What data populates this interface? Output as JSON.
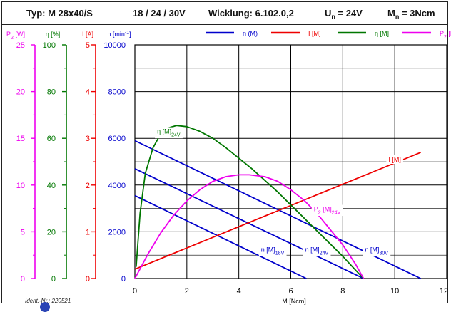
{
  "header": {
    "type": "Typ: M 28x40/S",
    "voltages": "18 / 24 / 30V",
    "winding": "Wicklung: 6.102.0,2",
    "un_main": "U",
    "un_sub": "n",
    "un_val": " = 24V",
    "mn_main": "M",
    "mn_sub": "n",
    "mn_val": " = 3Ncm"
  },
  "footer": {
    "ident": "Ident.-Nr.: 220521"
  },
  "legend": [
    {
      "label": "n (M)",
      "color": "#0000cc"
    },
    {
      "label": "I [M]",
      "color": "#ee0000"
    },
    {
      "label": "η [M]",
      "color": "#007700"
    },
    {
      "label": "P",
      "sub": "2",
      "label_tail": " [M]",
      "color": "#ee00ee"
    }
  ],
  "colors": {
    "speed": "#0000cc",
    "current": "#ee0000",
    "efficiency": "#007700",
    "power": "#ee00ee",
    "grid": "#000000"
  },
  "chart_data": {
    "type": "line",
    "xlabel": "M [Ncm]",
    "xlim": [
      0,
      12
    ],
    "x_ticks": [
      "0",
      "2",
      "4",
      "6",
      "8",
      "10",
      "12"
    ],
    "axes": [
      {
        "id": "p2",
        "label": "P",
        "label_sub": "2",
        "label_tail": " [W]",
        "lim": [
          0,
          25
        ],
        "ticks": [
          "0",
          "5",
          "10",
          "15",
          "20",
          "25"
        ],
        "color": "#ee00ee"
      },
      {
        "id": "eta",
        "label": "η [%]",
        "lim": [
          0,
          100
        ],
        "ticks": [
          "0",
          "20",
          "40",
          "60",
          "80",
          "100"
        ],
        "color": "#007700"
      },
      {
        "id": "i",
        "label": "I [A]",
        "lim": [
          0,
          5
        ],
        "ticks": [
          "0",
          "1",
          "2",
          "3",
          "4",
          "5"
        ],
        "color": "#ee0000"
      },
      {
        "id": "n",
        "label": "n [min",
        "label_sup": "-1",
        "label_tail": "]",
        "lim": [
          0,
          10000
        ],
        "ticks": [
          "0",
          "2000",
          "4000",
          "6000",
          "8000",
          "10000"
        ],
        "color": "#0000cc"
      }
    ],
    "series": [
      {
        "name": "n [M]",
        "sub": "18V",
        "axis": "n",
        "x": [
          0,
          6.6
        ],
        "y": [
          3550,
          0
        ]
      },
      {
        "name": "n [M]",
        "sub": "24V",
        "axis": "n",
        "x": [
          0,
          8.8
        ],
        "y": [
          4700,
          0
        ]
      },
      {
        "name": "n [M]",
        "sub": "30V",
        "axis": "n",
        "x": [
          0,
          11.0
        ],
        "y": [
          5900,
          0
        ]
      },
      {
        "name": "I [M]",
        "axis": "i",
        "x": [
          0,
          11.0
        ],
        "y": [
          0.2,
          2.7
        ]
      },
      {
        "name": "η [M]",
        "sub": "24V",
        "axis": "eta",
        "x": [
          0.05,
          0.2,
          0.4,
          0.7,
          1.0,
          1.3,
          1.6,
          2.0,
          2.5,
          3.0,
          3.5,
          4.0,
          4.5,
          5.0,
          5.5,
          6.0,
          6.5,
          7.0,
          7.5,
          8.0,
          8.5,
          8.8
        ],
        "y": [
          5,
          28,
          45,
          56,
          62,
          64.5,
          65.5,
          65,
          63,
          60,
          56,
          51.5,
          47,
          42,
          37,
          31.5,
          26,
          20.5,
          15,
          9.5,
          3.5,
          0
        ]
      },
      {
        "name": "P",
        "sub": "2",
        "tail": " [M]",
        "sub2": "24V",
        "axis": "p2",
        "x": [
          0,
          0.5,
          1.0,
          1.5,
          2.0,
          2.5,
          3.0,
          3.5,
          4.0,
          4.4,
          5.0,
          5.5,
          6.0,
          6.5,
          7.0,
          7.5,
          8.0,
          8.5,
          8.8
        ],
        "y": [
          0,
          2.6,
          4.9,
          6.8,
          8.3,
          9.5,
          10.4,
          10.9,
          11.1,
          11.1,
          10.9,
          10.4,
          9.5,
          8.4,
          7.0,
          5.3,
          3.6,
          1.5,
          0
        ]
      }
    ],
    "annotations": [
      {
        "text": "η [M]",
        "sub": "24V",
        "x": 1.3,
        "y_axis": "eta",
        "y": 62,
        "color": "#007700"
      },
      {
        "text": "I [M]",
        "x": 10.0,
        "y_axis": "i",
        "y": 2.5,
        "color": "#ee0000"
      },
      {
        "text": "P",
        "sub": "2",
        "tail": " [M]",
        "sub2": "24V",
        "x": 7.4,
        "y_axis": "p2",
        "y": 7.2,
        "color": "#ee00ee"
      },
      {
        "text": "n [M]",
        "sub": "18V",
        "x": 5.3,
        "y_axis": "n",
        "y": 1150,
        "color": "#0000cc"
      },
      {
        "text": "n [M]",
        "sub": "24V",
        "x": 7.0,
        "y_axis": "n",
        "y": 1150,
        "color": "#0000cc"
      },
      {
        "text": "n [M]",
        "sub": "30V",
        "x": 9.3,
        "y_axis": "n",
        "y": 1150,
        "color": "#0000cc"
      }
    ],
    "grid": true
  }
}
